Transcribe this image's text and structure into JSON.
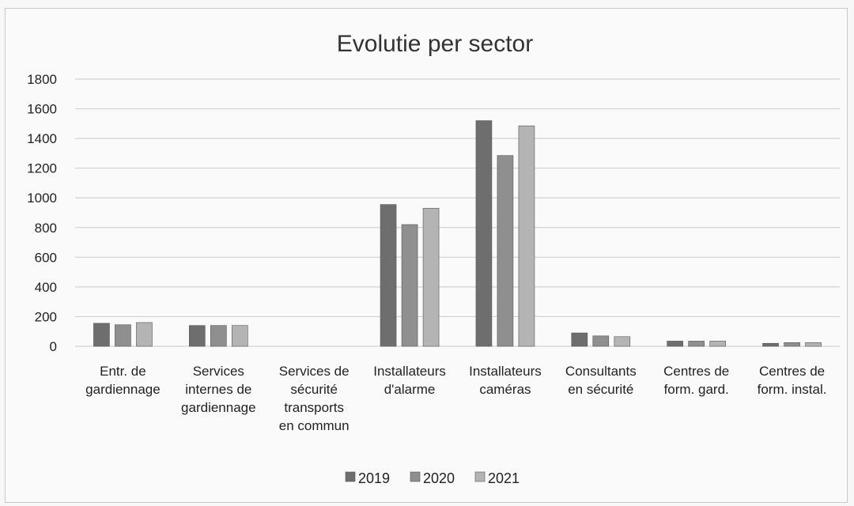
{
  "chart_data": {
    "type": "bar",
    "title": "Evolutie per sector",
    "xlabel": "",
    "ylabel": "",
    "ylim": [
      0,
      1800
    ],
    "yticks": [
      0,
      200,
      400,
      600,
      800,
      1000,
      1200,
      1400,
      1600,
      1800
    ],
    "grid": true,
    "legend_position": "bottom",
    "categories": [
      [
        "Entr. de",
        "gardiennage"
      ],
      [
        "Services",
        "internes de",
        "gardiennage"
      ],
      [
        "Services de",
        "sécurité",
        "transports",
        "en commun"
      ],
      [
        "Installateurs",
        "d'alarme"
      ],
      [
        "Installateurs",
        "caméras"
      ],
      [
        "Consultants",
        "en sécurité"
      ],
      [
        "Centres de",
        "form. gard."
      ],
      [
        "Centres de",
        "form. instal."
      ]
    ],
    "series": [
      {
        "name": "2019",
        "color": "#6e6e6e",
        "values": [
          155,
          140,
          0,
          955,
          1520,
          90,
          35,
          20
        ]
      },
      {
        "name": "2020",
        "color": "#8f8f8f",
        "values": [
          145,
          140,
          0,
          820,
          1285,
          70,
          35,
          25
        ]
      },
      {
        "name": "2021",
        "color": "#b4b4b4",
        "values": [
          160,
          140,
          0,
          930,
          1485,
          65,
          35,
          25
        ]
      }
    ]
  }
}
